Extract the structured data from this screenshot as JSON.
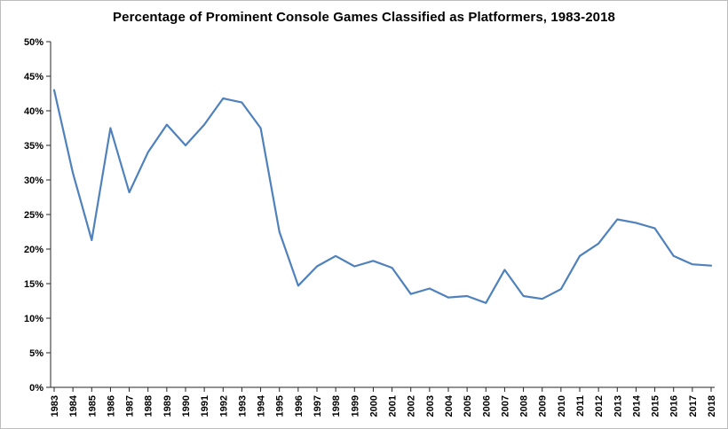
{
  "title": "Percentage of Prominent Console Games Classified as Platformers, 1983-2018",
  "colors": {
    "line": "#4F81BD",
    "axis": "#262626",
    "text": "#000000",
    "background": "#FFFFFF",
    "border": "#BDBDBD"
  },
  "chart_data": {
    "type": "line",
    "title": "Percentage of Prominent Console Games Classified as Platformers, 1983-2018",
    "x": [
      "1983",
      "1984",
      "1985",
      "1986",
      "1987",
      "1988",
      "1989",
      "1990",
      "1991",
      "1992",
      "1993",
      "1994",
      "1995",
      "1996",
      "1997",
      "1998",
      "1999",
      "2000",
      "2001",
      "2002",
      "2003",
      "2004",
      "2005",
      "2006",
      "2007",
      "2008",
      "2009",
      "2010",
      "2011",
      "2012",
      "2013",
      "2014",
      "2015",
      "2016",
      "2017",
      "2018"
    ],
    "values": [
      43,
      31,
      21.3,
      37.5,
      28.2,
      34,
      38,
      35,
      38,
      41.8,
      41.2,
      37.5,
      22.5,
      14.7,
      17.5,
      19,
      17.5,
      18.3,
      17.3,
      13.5,
      14.3,
      13,
      13.2,
      12.2,
      17,
      13.2,
      12.8,
      14.2,
      19,
      20.8,
      24.3,
      23.8,
      23,
      19,
      17.8,
      17.6
    ],
    "xlabel": "",
    "ylabel": "",
    "ylim": [
      0,
      50
    ],
    "ytick_step": 5,
    "ytick_labels": [
      "0%",
      "5%",
      "10%",
      "15%",
      "20%",
      "25%",
      "30%",
      "35%",
      "40%",
      "45%",
      "50%"
    ],
    "grid": false,
    "legend": "none"
  }
}
